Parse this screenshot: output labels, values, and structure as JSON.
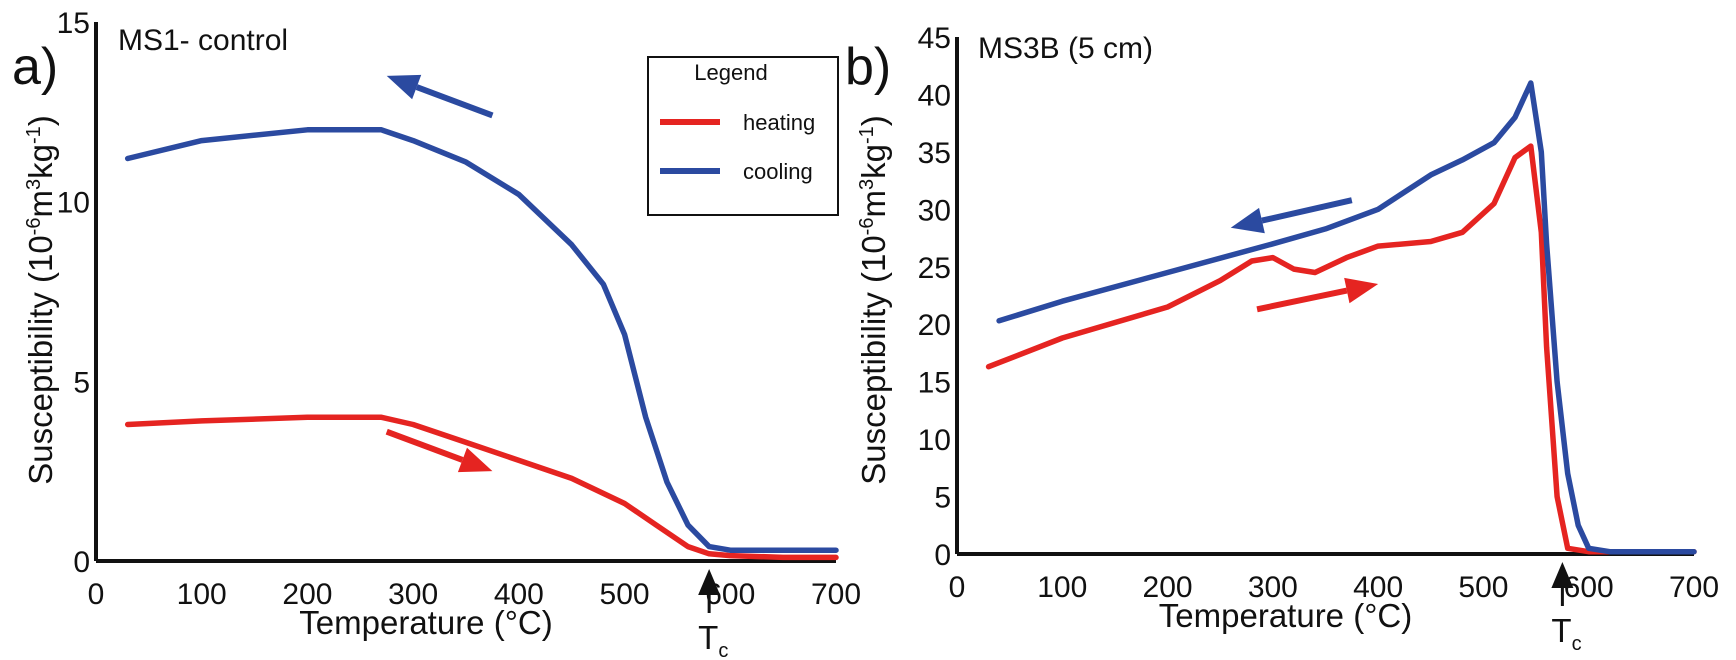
{
  "colors": {
    "heating": "#e52421",
    "cooling": "#2b4aa0"
  },
  "chart_data": [
    {
      "type": "line",
      "panel_label": "a)",
      "title": "MS1- control",
      "xlabel": "Temperature (°C)",
      "ylabel_main": "Susceptibility (10",
      "ylabel_sup1": "-6",
      "ylabel_mid": "m",
      "ylabel_sup2": "3",
      "ylabel_mid2": "kg",
      "ylabel_sup3": "-1",
      "ylabel_end": ")",
      "xlim": [
        0,
        700
      ],
      "ylim": [
        0,
        15
      ],
      "xticks": [
        0,
        100,
        200,
        300,
        400,
        500,
        600,
        700
      ],
      "yticks": [
        0,
        5,
        10,
        15
      ],
      "tc_label": "T",
      "tc_sub": "c",
      "tc_x": 580,
      "legend": {
        "title": "Legend",
        "placement": "top-right",
        "entries": [
          "heating",
          "cooling"
        ]
      },
      "series": [
        {
          "name": "heating",
          "color": "#e52421",
          "x": [
            30,
            100,
            200,
            270,
            300,
            350,
            400,
            450,
            500,
            530,
            560,
            580,
            600,
            650,
            700
          ],
          "y": [
            3.8,
            3.9,
            4.0,
            4.0,
            3.8,
            3.3,
            2.8,
            2.3,
            1.6,
            1.0,
            0.4,
            0.2,
            0.15,
            0.1,
            0.1
          ]
        },
        {
          "name": "cooling",
          "color": "#2b4aa0",
          "x": [
            30,
            100,
            200,
            270,
            300,
            350,
            400,
            450,
            480,
            500,
            520,
            540,
            560,
            580,
            600,
            650,
            700
          ],
          "y": [
            11.2,
            11.7,
            12.0,
            12.0,
            11.7,
            11.1,
            10.2,
            8.8,
            7.7,
            6.3,
            4.0,
            2.2,
            1.0,
            0.4,
            0.3,
            0.3,
            0.3
          ]
        }
      ],
      "arrows": [
        {
          "series": "cooling",
          "from": [
            375,
            12.4
          ],
          "to": [
            275,
            13.5
          ]
        },
        {
          "series": "heating",
          "from": [
            275,
            3.6
          ],
          "to": [
            375,
            2.5
          ]
        }
      ]
    },
    {
      "type": "line",
      "panel_label": "b)",
      "title": "MS3B (5 cm)",
      "xlabel": "Temperature (°C)",
      "ylabel_main": "Susceptibility (10",
      "ylabel_sup1": "-6",
      "ylabel_mid": "m",
      "ylabel_sup2": "3",
      "ylabel_mid2": "kg",
      "ylabel_sup3": "-1",
      "ylabel_end": ")",
      "xlim": [
        0,
        700
      ],
      "ylim": [
        0,
        45
      ],
      "xticks": [
        0,
        100,
        200,
        300,
        400,
        500,
        600,
        700
      ],
      "yticks": [
        0,
        5,
        10,
        15,
        20,
        25,
        30,
        35,
        40,
        45
      ],
      "tc_label": "T",
      "tc_sub": "c",
      "tc_x": 575,
      "series": [
        {
          "name": "heating",
          "color": "#e52421",
          "x": [
            30,
            100,
            200,
            250,
            280,
            300,
            320,
            340,
            370,
            400,
            450,
            480,
            510,
            530,
            545,
            555,
            560,
            570,
            580,
            600,
            700
          ],
          "y": [
            16.3,
            18.8,
            21.5,
            23.8,
            25.5,
            25.8,
            24.8,
            24.5,
            25.8,
            26.8,
            27.2,
            28.0,
            30.5,
            34.5,
            35.5,
            28.0,
            18.0,
            5.0,
            0.5,
            0.2,
            0.2
          ]
        },
        {
          "name": "cooling",
          "color": "#2b4aa0",
          "x": [
            40,
            100,
            200,
            300,
            350,
            400,
            450,
            480,
            510,
            530,
            545,
            555,
            560,
            570,
            580,
            590,
            600,
            620,
            700
          ],
          "y": [
            20.3,
            22.0,
            24.5,
            27.0,
            28.3,
            30.0,
            33.0,
            34.3,
            35.8,
            38.0,
            41.0,
            35.0,
            27.0,
            15.0,
            7.0,
            2.5,
            0.5,
            0.2,
            0.2
          ]
        }
      ],
      "arrows": [
        {
          "series": "cooling",
          "from": [
            375,
            30.8
          ],
          "to": [
            260,
            28.4
          ]
        },
        {
          "series": "heating",
          "from": [
            285,
            21.3
          ],
          "to": [
            400,
            23.5
          ]
        }
      ]
    }
  ]
}
